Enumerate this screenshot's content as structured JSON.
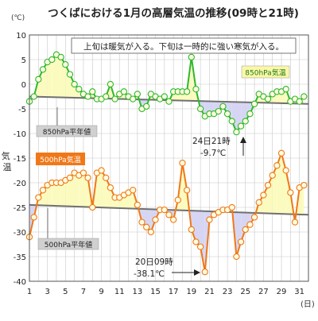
{
  "chart_data": {
    "type": "line",
    "title": "つくばにおける1月の高層気温の推移(09時と21時)",
    "ylabel": "気温",
    "yunit": "(℃)",
    "xunit": "(日)",
    "ylim": [
      -40,
      10
    ],
    "yticks": [
      10,
      5,
      0,
      -5,
      -10,
      -15,
      -20,
      -25,
      -30,
      -35,
      -40
    ],
    "xlim": [
      1,
      32
    ],
    "xticks": [
      1,
      3,
      5,
      7,
      9,
      11,
      13,
      15,
      17,
      19,
      21,
      23,
      25,
      27,
      29,
      31
    ],
    "grid": true,
    "annotation_box": "上旬は暖気が入る。下旬は一時的に強い寒気が入る。",
    "series": [
      {
        "name": "850hPa気温",
        "color": "#2db82d",
        "x": [
          1,
          1.5,
          2,
          2.5,
          3,
          3.5,
          4,
          4.5,
          5,
          5.5,
          6,
          6.5,
          7,
          7.5,
          8,
          8.5,
          9,
          9.5,
          10,
          10.5,
          11,
          11.5,
          12,
          12.5,
          13,
          13.5,
          14,
          14.5,
          15,
          15.5,
          16,
          16.5,
          17,
          17.5,
          18,
          18.5,
          19,
          19.5,
          20,
          20.5,
          21,
          21.5,
          22,
          22.5,
          23,
          23.5,
          24,
          24.5,
          25,
          25.5,
          26,
          26.5,
          27,
          27.5,
          28,
          28.5,
          29,
          29.5,
          30,
          30.5,
          31,
          31.5
        ],
        "values": [
          -3.5,
          -2.5,
          1,
          3,
          4.5,
          5,
          6,
          5.5,
          4,
          2,
          0,
          -1,
          -2,
          -2.5,
          -1.5,
          -3,
          -3,
          -2.5,
          0,
          -3,
          -2,
          -1.5,
          -2.5,
          -3,
          -2,
          -5,
          -4.5,
          -2,
          -2.5,
          -3,
          -2.5,
          -3.5,
          -1.5,
          -1.5,
          -1.5,
          -1.5,
          5.5,
          -1,
          -5,
          -6.5,
          -6,
          -6,
          -5.5,
          -4.5,
          -6,
          -7.5,
          -9.7,
          -8.5,
          -7.5,
          -6,
          -4,
          -2,
          -2.5,
          -3,
          -2,
          -1.5,
          -1.5,
          -1,
          -3.5,
          -3,
          -3.5,
          -2.5
        ]
      },
      {
        "name": "500hPa気温",
        "color": "#f07818",
        "x": [
          1,
          1.5,
          2,
          2.5,
          3,
          3.5,
          4,
          4.5,
          5,
          5.5,
          6,
          6.5,
          7,
          7.5,
          8,
          8.5,
          9,
          9.5,
          10,
          10.5,
          11,
          11.5,
          12,
          12.5,
          13,
          13.5,
          14,
          14.5,
          15,
          15.5,
          16,
          16.5,
          17,
          17.5,
          18,
          18.5,
          19,
          19.5,
          20,
          20.5,
          21,
          21.5,
          22,
          22.5,
          23,
          23.5,
          24,
          24.5,
          25,
          25.5,
          26,
          26.5,
          27,
          27.5,
          28,
          28.5,
          29,
          29.5,
          30,
          30.5,
          31,
          31.5
        ],
        "values": [
          -31,
          -27,
          -23,
          -21.5,
          -20.5,
          -20,
          -20,
          -20,
          -19.5,
          -19,
          -18,
          -18.5,
          -18,
          -19,
          -25,
          -18,
          -17.5,
          -19,
          -21,
          -23,
          -23,
          -22.5,
          -22,
          -21.5,
          -24.5,
          -28,
          -29,
          -30,
          -27.5,
          -25.5,
          -25.5,
          -26.5,
          -27.5,
          -23.5,
          -16,
          -21.5,
          -29.5,
          -32,
          -33,
          -38.1,
          -27.5,
          -26.5,
          -26,
          -25.5,
          -25.5,
          -25,
          -35,
          -32,
          -29.5,
          -28.5,
          -27,
          -24,
          -22.5,
          -20.5,
          -18.5,
          -16.5,
          -14,
          -17.5,
          -22,
          -28,
          -21,
          -20.5
        ]
      },
      {
        "name": "850hPa平年値",
        "color": "#707070",
        "x": [
          1,
          32
        ],
        "values": [
          -2.5,
          -4
        ]
      },
      {
        "name": "500hPa平年値",
        "color": "#707070",
        "x": [
          1,
          32
        ],
        "values": [
          -24.5,
          -26.5
        ]
      }
    ],
    "annotations": [
      {
        "text": "24日21時",
        "line2": "-9.7℃"
      },
      {
        "text": "20日09時",
        "line2": "-38.1℃"
      }
    ]
  },
  "labels": {
    "legend850": "850hPa気温",
    "legend500": "500hPa気温",
    "normal850": "850hPa平年値",
    "normal500": "500hPa平年値"
  },
  "colors": {
    "warm_fill": "#fbfbc0",
    "cold_fill": "#d6d6f4",
    "grid": "#c8c8c8"
  }
}
